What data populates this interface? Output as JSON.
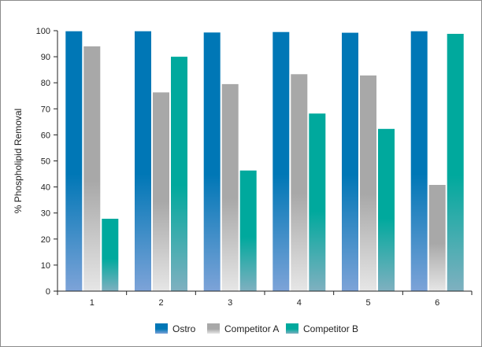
{
  "chart_data": {
    "type": "bar",
    "title": "",
    "xlabel": "",
    "ylabel": "% Phospholipid Removal",
    "categories": [
      "1",
      "2",
      "3",
      "4",
      "5",
      "6"
    ],
    "ylim": [
      0,
      100
    ],
    "yticks": [
      "0",
      "10",
      "20",
      "30",
      "40",
      "50",
      "60",
      "70",
      "80",
      "90",
      "100"
    ],
    "grid": false,
    "legend_position": "bottom",
    "series": [
      {
        "name": "Ostro",
        "values": [
          99.8,
          99.8,
          99.3,
          99.5,
          99.2,
          99.8
        ],
        "color_top": "#0077b6",
        "color_bottom": "#7da3d8"
      },
      {
        "name": "Competitor A",
        "values": [
          94,
          76.3,
          79.5,
          83.3,
          82.8,
          40.8
        ],
        "color_top": "#a8a8a8",
        "color_bottom": "#e6e6e6"
      },
      {
        "name": "Competitor B",
        "values": [
          27.8,
          90,
          46.3,
          68.2,
          62.3,
          98.8
        ],
        "color_top": "#00a99d",
        "color_bottom": "#7fb0c0"
      }
    ]
  }
}
